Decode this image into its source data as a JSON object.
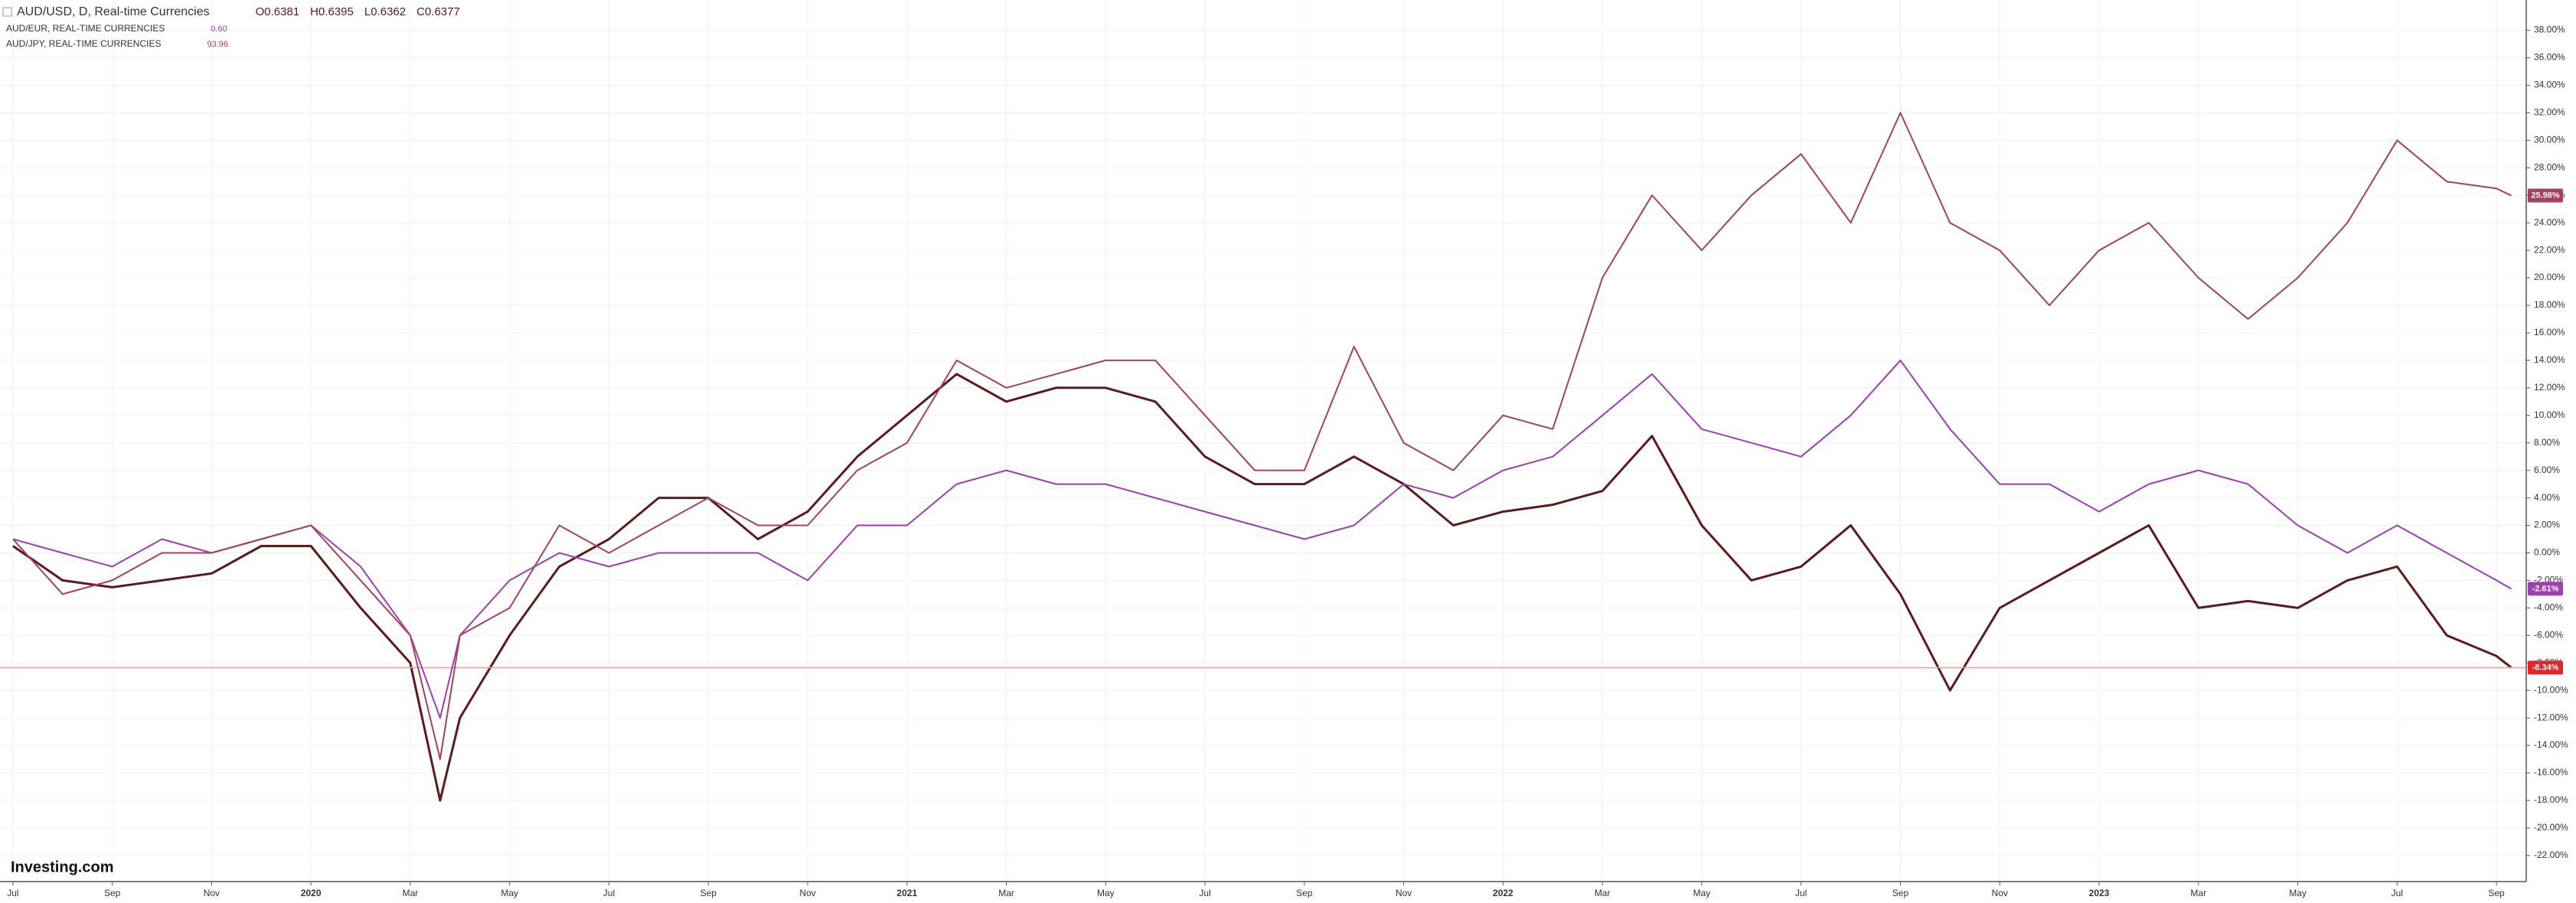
{
  "chart_data": {
    "type": "line",
    "logo": "Investing.com",
    "x": [
      0,
      1,
      2,
      3,
      4,
      5,
      6,
      7,
      8,
      8.6,
      9,
      10,
      11,
      12,
      13,
      14,
      15,
      16,
      17,
      18,
      19,
      20,
      21,
      22,
      23,
      24,
      25,
      26,
      27,
      28,
      29,
      30,
      31,
      32,
      33,
      34,
      35,
      36,
      37,
      38,
      39,
      40,
      41,
      42,
      43,
      44,
      45,
      46,
      47,
      48,
      49,
      50,
      50.3
    ],
    "xlim": [
      -0.26,
      50.6
    ],
    "xticks": [
      {
        "value": 0,
        "label": "Jul"
      },
      {
        "value": 2,
        "label": "Sep"
      },
      {
        "value": 4,
        "label": "Nov"
      },
      {
        "value": 6,
        "label": "2020"
      },
      {
        "value": 8,
        "label": "Mar"
      },
      {
        "value": 10,
        "label": "May"
      },
      {
        "value": 12,
        "label": "Jul"
      },
      {
        "value": 14,
        "label": "Sep"
      },
      {
        "value": 16,
        "label": "Nov"
      },
      {
        "value": 18,
        "label": "2021"
      },
      {
        "value": 20,
        "label": "Mar"
      },
      {
        "value": 22,
        "label": "May"
      },
      {
        "value": 24,
        "label": "Jul"
      },
      {
        "value": 26,
        "label": "Sep"
      },
      {
        "value": 28,
        "label": "Nov"
      },
      {
        "value": 30,
        "label": "2022"
      },
      {
        "value": 32,
        "label": "Mar"
      },
      {
        "value": 34,
        "label": "May"
      },
      {
        "value": 36,
        "label": "Jul"
      },
      {
        "value": 38,
        "label": "Sep"
      },
      {
        "value": 40,
        "label": "Nov"
      },
      {
        "value": 42,
        "label": "2023"
      },
      {
        "value": 44,
        "label": "Mar"
      },
      {
        "value": 46,
        "label": "May"
      },
      {
        "value": 48,
        "label": "Jul"
      },
      {
        "value": 50,
        "label": "Sep"
      }
    ],
    "ylim": [
      -23.9,
      40.2
    ],
    "yticks": [
      {
        "value": -22,
        "label": "-22.00%"
      },
      {
        "value": -20,
        "label": "-20.00%"
      },
      {
        "value": -18,
        "label": "-18.00%"
      },
      {
        "value": -16,
        "label": "-16.00%"
      },
      {
        "value": -14,
        "label": "-14.00%"
      },
      {
        "value": -12,
        "label": "-12.00%"
      },
      {
        "value": -10,
        "label": "-10.00%"
      },
      {
        "value": -8,
        "label": "-8.00%"
      },
      {
        "value": -6,
        "label": "-6.00%"
      },
      {
        "value": -4,
        "label": "-4.00%"
      },
      {
        "value": -2,
        "label": "-2.00%"
      },
      {
        "value": 0,
        "label": "0.00%"
      },
      {
        "value": 2,
        "label": "2.00%"
      },
      {
        "value": 4,
        "label": "4.00%"
      },
      {
        "value": 6,
        "label": "6.00%"
      },
      {
        "value": 8,
        "label": "8.00%"
      },
      {
        "value": 10,
        "label": "10.00%"
      },
      {
        "value": 12,
        "label": "12.00%"
      },
      {
        "value": 14,
        "label": "14.00%"
      },
      {
        "value": 16,
        "label": "16.00%"
      },
      {
        "value": 18,
        "label": "18.00%"
      },
      {
        "value": 20,
        "label": "20.00%"
      },
      {
        "value": 22,
        "label": "22.00%"
      },
      {
        "value": 24,
        "label": "24.00%"
      },
      {
        "value": 26,
        "label": "26.00%"
      },
      {
        "value": 28,
        "label": "28.00%"
      },
      {
        "value": 30,
        "label": "30.00%"
      },
      {
        "value": 32,
        "label": "32.00%"
      },
      {
        "value": 34,
        "label": "34.00%"
      },
      {
        "value": 36,
        "label": "36.00%"
      },
      {
        "value": 38,
        "label": "38.00%"
      }
    ],
    "grid": true,
    "series": [
      {
        "name": "AUD/USD, D, Real-time Currencies",
        "color": "#5c1a1a",
        "quote": [
          "O0.6381",
          "H0.6395",
          "L0.6362",
          "C0.6377"
        ],
        "values": [
          0.5,
          -2,
          -2.5,
          -2,
          -1.5,
          0.5,
          0.5,
          -4,
          -8,
          -18,
          -12,
          -6,
          -1,
          1,
          4,
          4,
          1,
          3,
          7,
          10,
          13,
          11,
          12,
          12,
          11,
          7,
          5,
          5,
          7,
          5,
          2,
          3,
          3.5,
          4.5,
          8.5,
          2,
          -2,
          -1,
          2,
          -3,
          -10,
          -4,
          -2,
          0,
          2,
          -4,
          -3.5,
          -4,
          -2,
          -1,
          -6,
          -7.5,
          -8.34
        ],
        "value_labels": [
          null,
          null,
          null,
          null,
          null,
          null,
          null,
          null,
          null,
          null,
          null,
          null,
          null,
          null,
          null,
          null,
          null,
          null,
          null,
          null,
          null,
          null,
          null,
          null,
          null,
          null,
          null,
          null,
          null,
          null,
          null,
          null,
          null,
          null,
          null,
          null,
          null,
          null,
          null,
          null,
          null,
          null,
          null,
          null,
          null,
          null,
          null,
          null,
          null,
          null,
          null,
          null,
          "-8.34%"
        ]
      },
      {
        "name": "AUD/EUR, REAL-TIME CURRENCIES",
        "color": "#9c3fb0",
        "quote": [
          "0.60"
        ],
        "values": [
          1,
          0,
          -1,
          1,
          0,
          1,
          2,
          -1,
          -6,
          -12,
          -6,
          -2,
          0,
          -1,
          0,
          0,
          0,
          -2,
          2,
          2,
          5,
          6,
          5,
          5,
          4,
          3,
          2,
          1,
          2,
          5,
          4,
          6,
          7,
          10,
          13,
          9,
          8,
          7,
          10,
          14,
          9,
          5,
          5,
          3,
          5,
          6,
          5,
          2,
          0,
          2,
          0,
          -2,
          -2.61
        ],
        "value_labels": [
          null,
          null,
          null,
          null,
          null,
          null,
          null,
          null,
          null,
          null,
          null,
          null,
          null,
          null,
          null,
          null,
          null,
          null,
          null,
          null,
          null,
          null,
          null,
          null,
          null,
          null,
          null,
          null,
          null,
          null,
          null,
          null,
          null,
          null,
          null,
          null,
          null,
          null,
          null,
          null,
          null,
          null,
          null,
          null,
          null,
          null,
          null,
          null,
          null,
          null,
          null,
          null,
          "-2.61%"
        ]
      },
      {
        "name": "AUD/JPY, REAL-TIME CURRENCIES",
        "color": "#a3415e",
        "quote": [
          "93.96"
        ],
        "values": [
          1,
          -3,
          -2,
          0,
          0,
          1,
          2,
          -2,
          -6,
          -15,
          -6,
          -4,
          2,
          0,
          2,
          4,
          2,
          2,
          6,
          8,
          14,
          12,
          13,
          14,
          14,
          10,
          6,
          6,
          15,
          8,
          6,
          10,
          9,
          20,
          26,
          22,
          26,
          29,
          24,
          32,
          24,
          22,
          18,
          22,
          24,
          20,
          17,
          20,
          24,
          30,
          27,
          26.5,
          25.98
        ],
        "value_labels": [
          null,
          null,
          null,
          null,
          null,
          null,
          null,
          null,
          null,
          null,
          null,
          null,
          null,
          null,
          null,
          null,
          null,
          null,
          null,
          null,
          null,
          null,
          null,
          null,
          null,
          null,
          null,
          null,
          null,
          null,
          null,
          null,
          null,
          null,
          null,
          null,
          null,
          null,
          null,
          null,
          null,
          null,
          null,
          null,
          null,
          null,
          null,
          null,
          null,
          null,
          null,
          null,
          "25.98%"
        ]
      }
    ]
  }
}
